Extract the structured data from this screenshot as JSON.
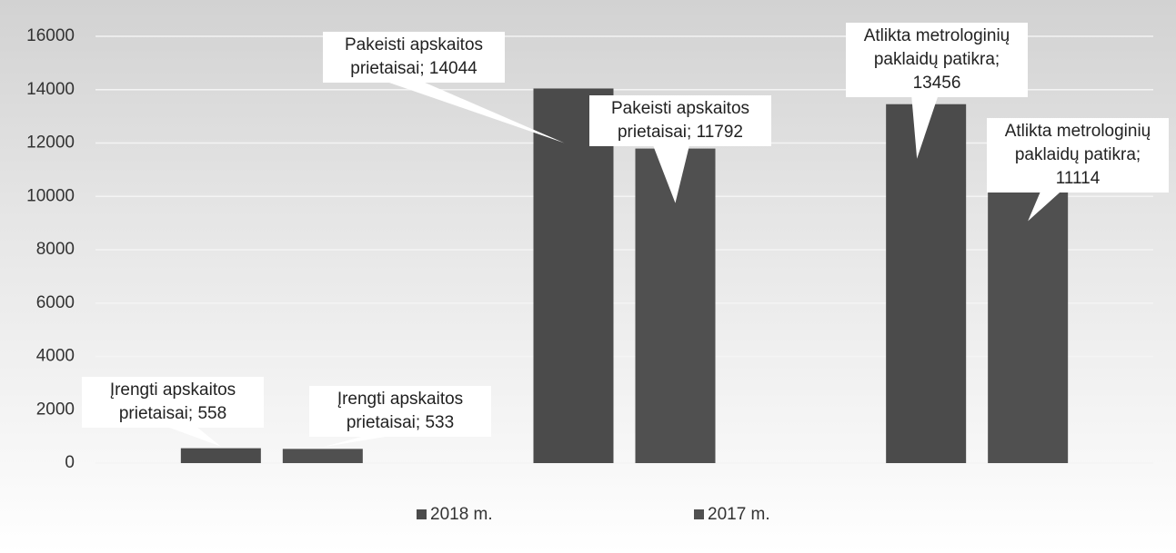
{
  "chart_data": {
    "type": "bar",
    "categories": [
      null,
      null,
      null
    ],
    "series": [
      {
        "name": "2018 m.",
        "color": "#4b4b4b",
        "values": [
          558,
          14044,
          13456
        ],
        "value_labels": [
          "Įrengti apskaitos prietaisai; 558",
          "Pakeisti apskaitos prietaisai; 14044",
          "Atlikta metrologinių paklaidų patikra; 13456"
        ]
      },
      {
        "name": "2017 m.",
        "color": "#505050",
        "values": [
          533,
          11792,
          11114
        ],
        "value_labels": [
          "Įrengti apskaitos prietaisai; 533",
          "Pakeisti apskaitos prietaisai; 11792",
          "Atlikta metrologinių paklaidų patikra; 11114"
        ]
      }
    ],
    "ylim": [
      0,
      16000
    ],
    "yticks": [
      0,
      2000,
      4000,
      6000,
      8000,
      10000,
      12000,
      14000,
      16000
    ],
    "grid": true,
    "legend": "bottom"
  }
}
